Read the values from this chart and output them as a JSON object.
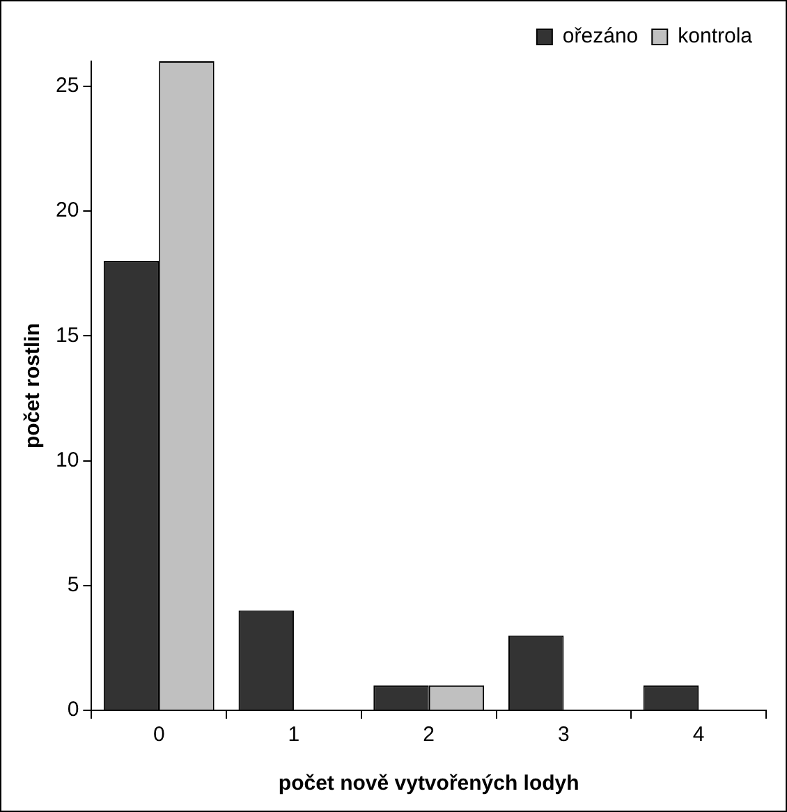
{
  "chart_data": {
    "type": "bar",
    "xlabel": "počet nově vytvořených lodyh",
    "ylabel": "počet rostlin",
    "categories": [
      "0",
      "1",
      "2",
      "3",
      "4"
    ],
    "series": [
      {
        "name": "ořezáno",
        "color": "#333333",
        "values": [
          18,
          4,
          1,
          3,
          1
        ]
      },
      {
        "name": "kontrola",
        "color": "#c0c0c0",
        "values": [
          26,
          0,
          1,
          0,
          0
        ]
      }
    ],
    "ylim": [
      0,
      26
    ],
    "yticks": [
      0,
      5,
      10,
      15,
      20,
      25
    ],
    "legend": "top right"
  }
}
